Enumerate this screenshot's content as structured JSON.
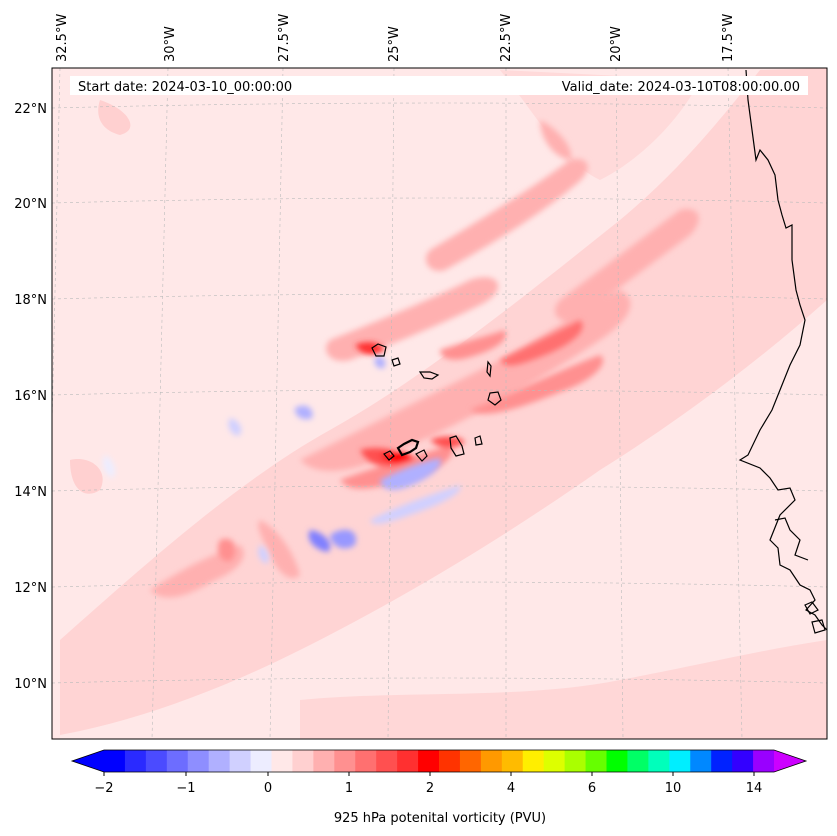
{
  "header": {
    "start_date": "Start date: 2024-03-10_00:00:00",
    "valid_date": "Valid_date: 2024-03-10T08:00:00.00"
  },
  "map": {
    "longitude_labels": [
      "32.5°W",
      "30°W",
      "27.5°W",
      "25°W",
      "22.5°W",
      "20°W",
      "17.5°W"
    ],
    "latitude_labels": [
      "22°N",
      "20°N",
      "18°N",
      "16°N",
      "14°N",
      "12°N",
      "10°N"
    ],
    "gridlines": true,
    "background_color": "#ffe8e8"
  },
  "colorbar": {
    "title": "925 hPa potenital vorticity (PVU)",
    "tick_labels": [
      "−2",
      "−1",
      "0",
      "1",
      "2",
      "4",
      "6",
      "10",
      "14"
    ],
    "colors": [
      "#0000ff",
      "#2a2aff",
      "#4b4bff",
      "#6d6dff",
      "#8e8eff",
      "#b0b0ff",
      "#d0d0ff",
      "#ededff",
      "#ffe8e8",
      "#ffd0d0",
      "#ffb0b0",
      "#ff9090",
      "#ff7070",
      "#ff5050",
      "#ff3030",
      "#ff0000",
      "#ff3300",
      "#ff6600",
      "#ff9900",
      "#ffbb00",
      "#ffee00",
      "#ddff00",
      "#aaff00",
      "#66ff00",
      "#00ff00",
      "#00ff66",
      "#00ffbb",
      "#00eeff",
      "#0088ff",
      "#0022ff",
      "#3300ff",
      "#9900ff"
    ],
    "extend_low_color": "#0000ff",
    "extend_high_color": "#cc00ff"
  }
}
